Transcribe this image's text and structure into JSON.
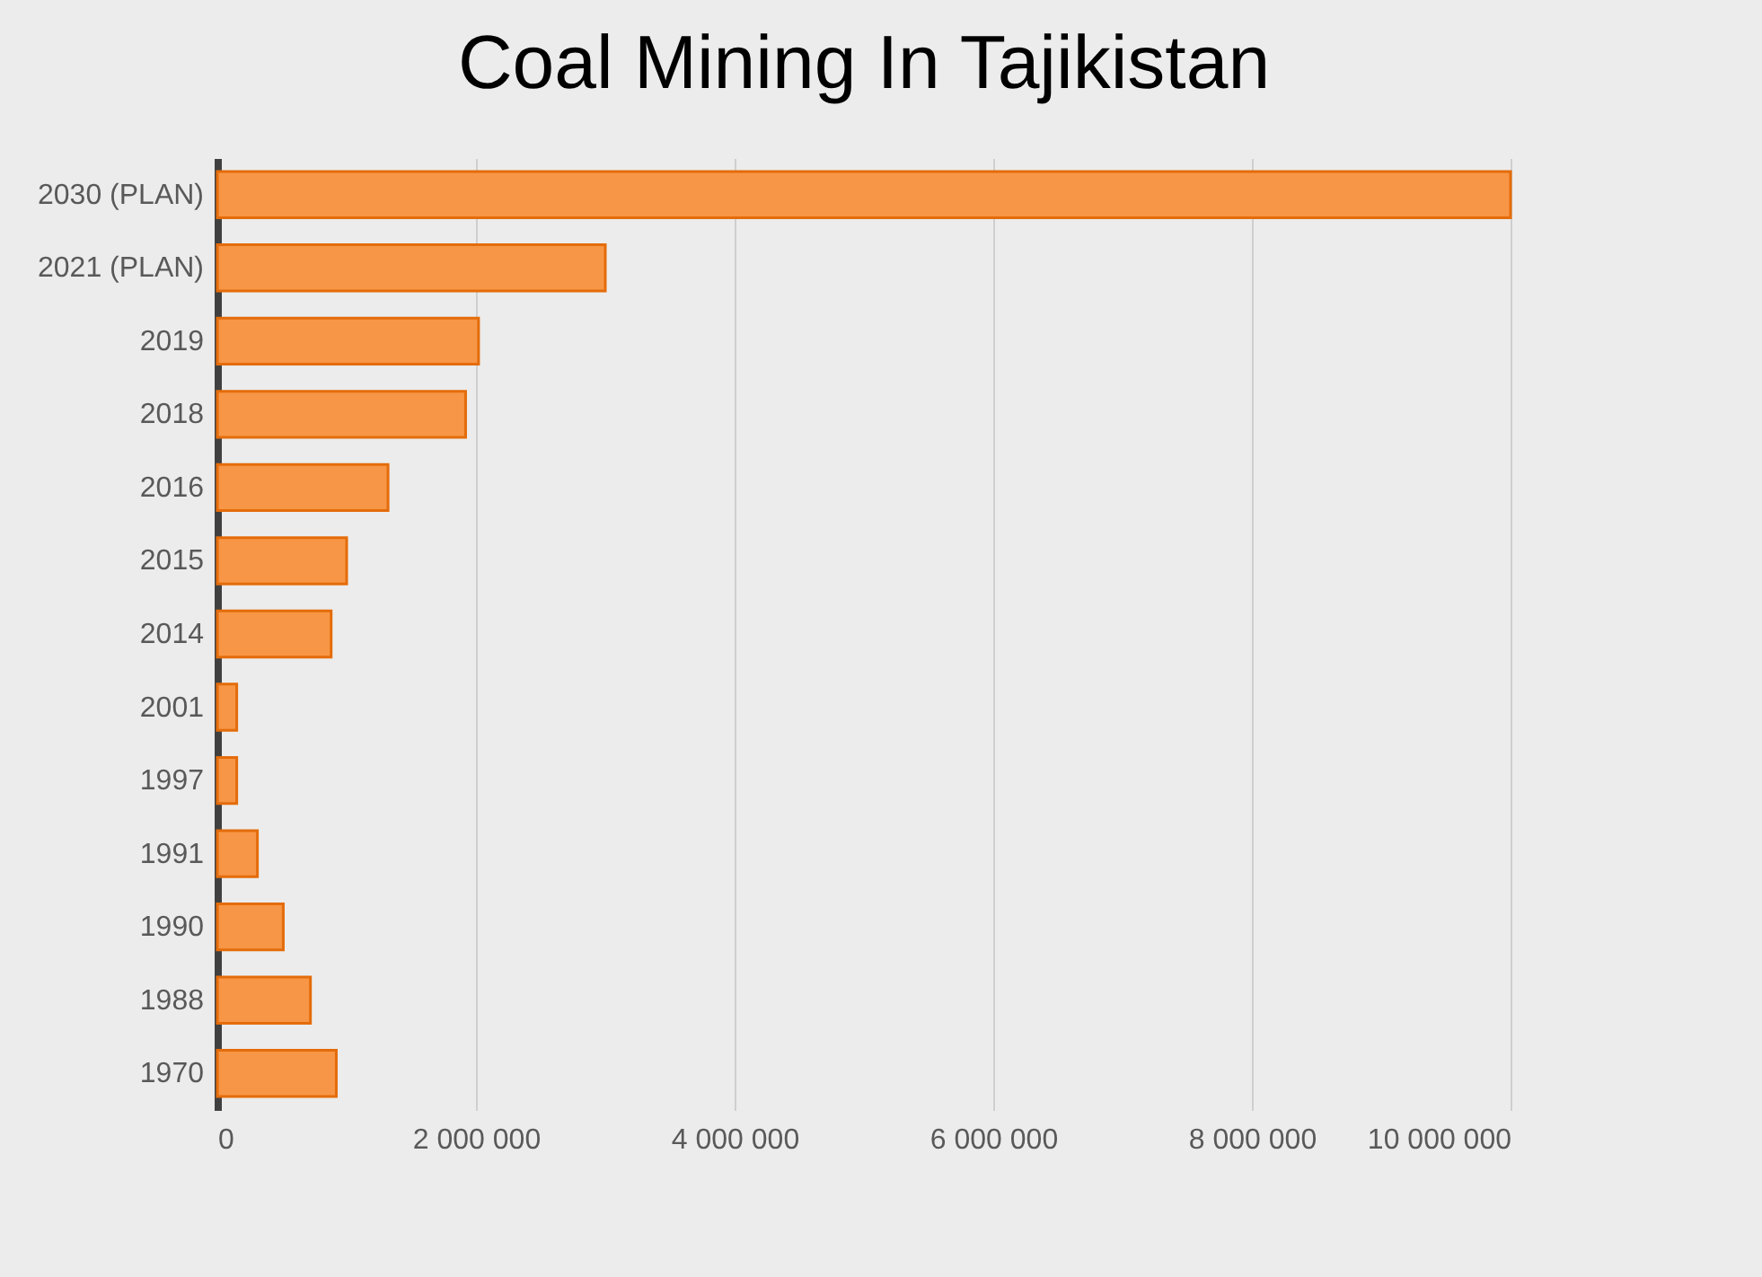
{
  "chart_data": {
    "type": "bar",
    "title": "Coal Mining In Tajikistan",
    "orientation": "horizontal",
    "categories": [
      "2030 (PLAN)",
      "2021 (PLAN)",
      "2019",
      "2018",
      "2016",
      "2015",
      "2014",
      "2001",
      "1997",
      "1991",
      "1990",
      "1988",
      "1970"
    ],
    "values": [
      10000000,
      3000000,
      2020000,
      1920000,
      1320000,
      1000000,
      880000,
      150000,
      150000,
      310000,
      510000,
      720000,
      920000
    ],
    "color": "#f79646",
    "xlim": [
      0,
      10000000
    ],
    "xticks": [
      0,
      {
        "value": 2000000,
        "label": "2 000 000"
      },
      {
        "value": 4000000,
        "label": "4 000 000"
      },
      {
        "value": 6000000,
        "label": "6 000 000"
      },
      {
        "value": 8000000,
        "label": "8 000 000"
      },
      {
        "value": 10000000,
        "label": "10 000 000"
      }
    ],
    "grid": "x"
  }
}
